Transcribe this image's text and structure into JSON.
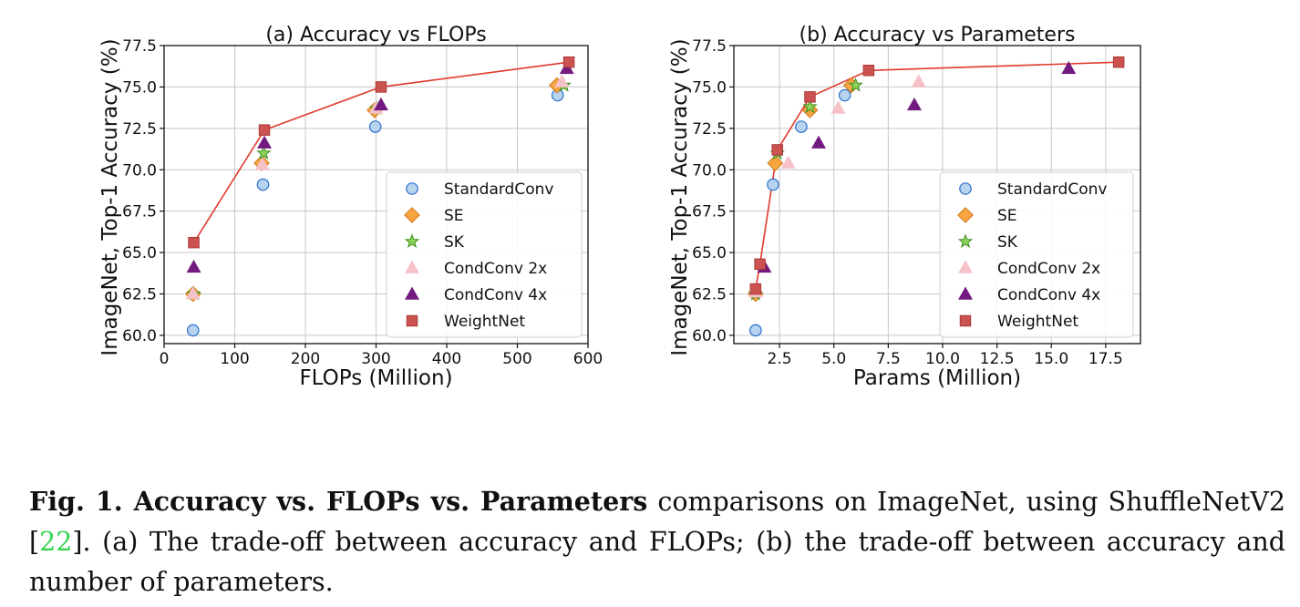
{
  "figure": {
    "caption": {
      "lead": "Fig. 1. Accuracy vs. FLOPs vs. Parameters",
      "text_before_ref": " comparisons on ImageNet, using ShuffleNetV2 [",
      "ref": "22",
      "text_after_ref": "]. (a) The trade-off between accuracy and FLOPs; (b) the trade-off between accuracy and number of parameters."
    }
  },
  "chart_data": [
    {
      "type": "scatter",
      "title": "(a) Accuracy vs FLOPs",
      "xlabel": "FLOPs (Million)",
      "ylabel": "ImageNet, Top-1 Accuracy (%)",
      "xlim": [
        0,
        600
      ],
      "ylim": [
        59.5,
        77.5
      ],
      "xticks": [
        0,
        100,
        200,
        300,
        400,
        500,
        600
      ],
      "xtick_labels": [
        "0",
        "100",
        "200",
        "300",
        "400",
        "500",
        "600"
      ],
      "yticks": [
        60.0,
        62.5,
        65.0,
        67.5,
        70.0,
        72.5,
        75.0,
        77.5
      ],
      "ytick_labels": [
        "60.0",
        "62.5",
        "65.0",
        "67.5",
        "70.0",
        "72.5",
        "75.0",
        "77.5"
      ],
      "grid": true,
      "legend_position": "lower-right",
      "series": [
        {
          "name": "StandardConv",
          "marker": "circle",
          "fill": "#b7d3ee",
          "stroke": "#2a6fcf",
          "x": [
            41,
            140,
            299,
            557
          ],
          "y": [
            60.3,
            69.1,
            72.6,
            74.5
          ],
          "line": false
        },
        {
          "name": "SE",
          "marker": "diamond",
          "fill": "#f7a540",
          "stroke": "#d07a1c",
          "x": [
            41,
            138,
            298,
            556
          ],
          "y": [
            62.5,
            70.4,
            73.6,
            75.1
          ],
          "line": false
        },
        {
          "name": "SK",
          "marker": "star",
          "fill": "#8fd35a",
          "stroke": "#3f8f1f",
          "x": [
            42,
            141,
            301,
            566
          ],
          "y": [
            62.5,
            71.0,
            73.7,
            75.1
          ],
          "line": false
        },
        {
          "name": "CondConv 2x",
          "marker": "triangle",
          "fill": "#f6c1c8",
          "stroke": "#f6c1c8",
          "x": [
            41,
            139,
            300,
            563
          ],
          "y": [
            62.5,
            70.3,
            73.7,
            75.3
          ],
          "line": false
        },
        {
          "name": "CondConv 4x",
          "marker": "triangle",
          "fill": "#731a80",
          "stroke": "#731a80",
          "x": [
            42,
            142,
            307,
            570
          ],
          "y": [
            64.1,
            71.6,
            73.9,
            76.1
          ],
          "line": false
        },
        {
          "name": "WeightNet",
          "marker": "square",
          "fill": "#cc5250",
          "stroke": "#a83a38",
          "x": [
            42,
            142,
            307,
            573
          ],
          "y": [
            65.6,
            72.4,
            75.0,
            76.5
          ],
          "line": true,
          "line_color": "#e03a2e"
        }
      ]
    },
    {
      "type": "scatter",
      "title": "(b) Accuracy vs Parameters",
      "xlabel": "Params (Million)",
      "ylabel": "ImageNet, Top-1 Accuracy (%)",
      "xlim": [
        0.4,
        19.1
      ],
      "ylim": [
        59.5,
        77.5
      ],
      "xticks": [
        2.5,
        5.0,
        7.5,
        10.0,
        12.5,
        15.0,
        17.5
      ],
      "xtick_labels": [
        "2.5",
        "5.0",
        "7.5",
        "10.0",
        "12.5",
        "15.0",
        "17.5"
      ],
      "yticks": [
        60.0,
        62.5,
        65.0,
        67.5,
        70.0,
        72.5,
        75.0,
        77.5
      ],
      "ytick_labels": [
        "60.0",
        "62.5",
        "65.0",
        "67.5",
        "70.0",
        "72.5",
        "75.0",
        "77.5"
      ],
      "grid": true,
      "legend_position": "lower-right",
      "series": [
        {
          "name": "StandardConv",
          "marker": "circle",
          "fill": "#b7d3ee",
          "stroke": "#2a6fcf",
          "x": [
            1.4,
            2.2,
            3.5,
            5.5
          ],
          "y": [
            60.3,
            69.1,
            72.6,
            74.5
          ],
          "line": false
        },
        {
          "name": "SE",
          "marker": "diamond",
          "fill": "#f7a540",
          "stroke": "#d07a1c",
          "x": [
            1.4,
            2.3,
            3.9,
            5.8
          ],
          "y": [
            62.5,
            70.4,
            73.6,
            75.1
          ],
          "line": false
        },
        {
          "name": "SK",
          "marker": "star",
          "fill": "#8fd35a",
          "stroke": "#3f8f1f",
          "x": [
            1.4,
            2.4,
            3.9,
            6.0
          ],
          "y": [
            62.5,
            71.0,
            73.8,
            75.1
          ],
          "line": false
        },
        {
          "name": "CondConv 2x",
          "marker": "triangle",
          "fill": "#f6c1c8",
          "stroke": "#f6c1c8",
          "x": [
            1.4,
            2.9,
            5.2,
            8.9
          ],
          "y": [
            62.6,
            70.4,
            73.7,
            75.3
          ],
          "line": false
        },
        {
          "name": "CondConv 4x",
          "marker": "triangle",
          "fill": "#731a80",
          "stroke": "#731a80",
          "x": [
            1.8,
            4.3,
            8.7,
            15.8
          ],
          "y": [
            64.1,
            71.6,
            73.9,
            76.1
          ],
          "line": false
        },
        {
          "name": "WeightNet",
          "marker": "square",
          "fill": "#cc5250",
          "stroke": "#a83a38",
          "x": [
            1.4,
            1.6,
            2.4,
            3.9,
            6.6,
            18.1
          ],
          "y": [
            62.8,
            64.3,
            71.2,
            74.4,
            76.0,
            76.5
          ],
          "line": true,
          "line_color": "#e03a2e"
        }
      ]
    }
  ]
}
